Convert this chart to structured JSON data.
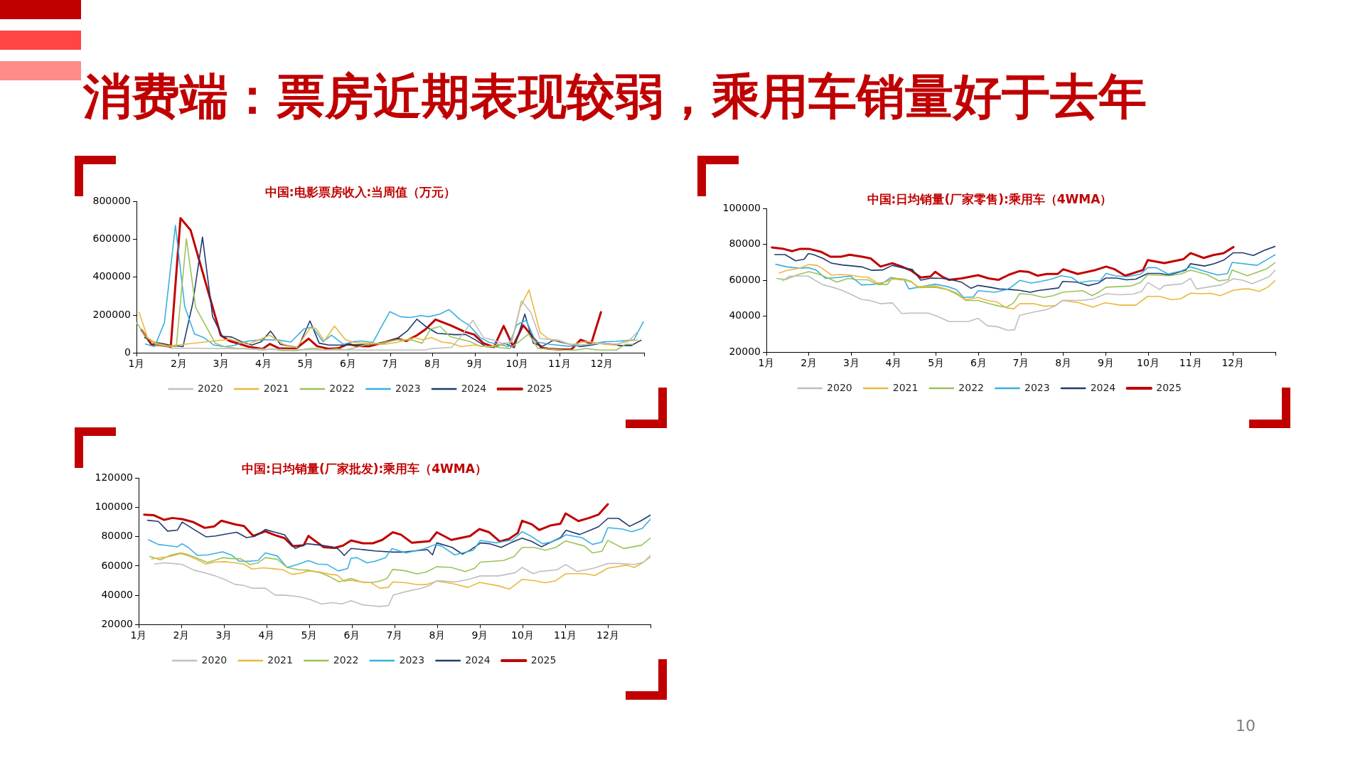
{
  "chart_data": [
    {
      "type": "other",
      "title": "消费端：票房近期表现较弱，乘用车销量好于去年",
      "annotations": [
        "10"
      ]
    },
    {
      "type": "line",
      "title": "中国:电影票房收入:当周值（万元）",
      "xlim": [
        1,
        13
      ],
      "xticks": [
        {
          "value": 1,
          "label": "1月"
        },
        {
          "value": 2,
          "label": "2月"
        },
        {
          "value": 3,
          "label": "3月"
        },
        {
          "value": 4,
          "label": "4月"
        },
        {
          "value": 5,
          "label": "5月"
        },
        {
          "value": 6,
          "label": "6月"
        },
        {
          "value": 7,
          "label": "7月"
        },
        {
          "value": 8,
          "label": "8月"
        },
        {
          "value": 9,
          "label": "9月"
        },
        {
          "value": 10,
          "label": "10月"
        },
        {
          "value": 11,
          "label": "11月"
        },
        {
          "value": 12,
          "label": "12月"
        },
        {
          "value": 13,
          "label": null
        }
      ],
      "ylim": [
        0,
        800000
      ],
      "yticks": [
        0,
        200000,
        400000,
        600000,
        800000
      ],
      "legend": "bottom",
      "series": [
        {
          "name": "2020",
          "color": "#bfbfbf",
          "x": [
            1.81,
            2.52,
            3.64,
            4.76,
            5.89,
            6.78,
            7.19,
            7.8,
            8.0,
            8.45,
            8.67,
            8.95,
            9.2,
            9.45,
            9.71,
            9.87,
            10.1,
            10.32,
            10.54,
            10.77,
            10.99,
            11.25,
            11.5,
            11.75,
            12.06,
            12.34,
            12.62,
            12.85
          ],
          "values": [
            24000,
            24000,
            21000,
            17000,
            15000,
            15000,
            15000,
            15000,
            23000,
            29000,
            87000,
            172000,
            81000,
            67000,
            45000,
            59000,
            275000,
            215000,
            75000,
            72000,
            67000,
            45000,
            42000,
            47000,
            51000,
            47000,
            59000,
            112000
          ]
        },
        {
          "name": "2021",
          "color": "#ebb83f",
          "x": [
            1.06,
            1.26,
            1.46,
            1.74,
            1.96,
            3.2,
            3.64,
            4.15,
            4.48,
            4.79,
            5.1,
            5.24,
            5.44,
            5.68,
            5.94,
            6.17,
            6.45,
            6.85,
            7.16,
            7.58,
            7.77,
            7.97,
            8.22,
            8.45,
            8.67,
            8.98,
            9.31,
            9.65,
            9.87,
            10.07,
            10.28,
            10.54,
            10.77,
            10.99,
            11.28,
            11.58,
            11.81,
            12.06,
            12.34,
            12.56,
            12.85
          ],
          "values": [
            215000,
            81000,
            51000,
            36000,
            41000,
            72000,
            45000,
            93000,
            45000,
            27000,
            130000,
            130000,
            63000,
            142000,
            69000,
            53000,
            51000,
            45000,
            55000,
            81000,
            69000,
            81000,
            57000,
            51000,
            33000,
            41000,
            33000,
            45000,
            59000,
            239000,
            333000,
            108000,
            69000,
            63000,
            42000,
            59000,
            55000,
            45000,
            41000,
            63000,
            67000
          ]
        },
        {
          "name": "2022",
          "color": "#9bc35a",
          "x": [
            1.01,
            1.24,
            1.46,
            1.71,
            1.94,
            2.18,
            2.4,
            2.64,
            2.86,
            3.08,
            3.36,
            3.64,
            3.98,
            4.2,
            4.48,
            4.76,
            5.04,
            5.21,
            5.44,
            5.72,
            5.94,
            6.17,
            6.45,
            6.78,
            7.16,
            7.49,
            7.75,
            7.96,
            8.18,
            8.42,
            8.64,
            8.87,
            9.12,
            9.43,
            9.62,
            9.82,
            10.04,
            10.27,
            10.49,
            10.77,
            11.11,
            11.39,
            11.64,
            11.89,
            12.34,
            12.56,
            12.73
          ],
          "values": [
            157000,
            81000,
            45000,
            36000,
            33000,
            603000,
            239000,
            142000,
            51000,
            33000,
            24000,
            23000,
            15000,
            21000,
            11000,
            11000,
            21000,
            24000,
            15000,
            21000,
            15000,
            27000,
            45000,
            51000,
            69000,
            69000,
            51000,
            127000,
            140000,
            85000,
            73000,
            61000,
            35000,
            33000,
            27000,
            23000,
            59000,
            100000,
            23000,
            21000,
            15000,
            15000,
            23000,
            15000,
            15000,
            45000,
            45000
          ]
        },
        {
          "name": "2023",
          "color": "#39b0e0",
          "x": [
            1.21,
            1.43,
            1.66,
            1.92,
            2.14,
            2.37,
            2.59,
            2.83,
            3.08,
            3.31,
            3.64,
            3.98,
            4.32,
            4.65,
            4.96,
            5.16,
            5.41,
            5.61,
            5.89,
            6.11,
            6.33,
            6.59,
            6.77,
            6.99,
            7.24,
            7.49,
            7.72,
            7.91,
            8.17,
            8.39,
            8.64,
            8.87,
            9.12,
            9.34,
            9.57,
            9.79,
            9.99,
            10.21,
            10.44,
            10.77,
            11.22,
            11.5,
            11.75,
            12.06,
            12.34,
            12.76,
            12.98
          ],
          "values": [
            47000,
            33000,
            160000,
            674000,
            245000,
            100000,
            81000,
            41000,
            33000,
            39000,
            63000,
            69000,
            69000,
            57000,
            127000,
            136000,
            59000,
            93000,
            45000,
            59000,
            63000,
            55000,
            130000,
            218000,
            191000,
            187000,
            197000,
            191000,
            205000,
            229000,
            178000,
            144000,
            81000,
            55000,
            45000,
            33000,
            148000,
            172000,
            59000,
            45000,
            35000,
            39000,
            47000,
            59000,
            61000,
            69000,
            164000
          ]
        },
        {
          "name": "2024",
          "color": "#1f3c6e",
          "x": [
            1.19,
            1.4,
            1.63,
            1.82,
            2.1,
            2.33,
            2.56,
            2.8,
            3.03,
            3.25,
            3.48,
            3.73,
            3.95,
            4.17,
            4.4,
            4.65,
            4.82,
            5.1,
            5.32,
            5.55,
            6.0,
            6.51,
            6.85,
            7.16,
            7.41,
            7.63,
            7.86,
            8.11,
            8.53,
            8.78,
            9.01,
            9.26,
            9.45,
            9.7,
            9.93,
            10.18,
            10.38,
            10.6,
            10.86,
            11.05,
            11.5,
            11.78,
            12.03,
            12.4,
            12.7,
            12.93
          ],
          "values": [
            81000,
            57000,
            49000,
            39000,
            33000,
            263000,
            612000,
            191000,
            87000,
            84000,
            59000,
            41000,
            59000,
            115000,
            45000,
            35000,
            27000,
            169000,
            51000,
            41000,
            41000,
            45000,
            55000,
            75000,
            118000,
            178000,
            136000,
            103000,
            96000,
            97000,
            69000,
            33000,
            30000,
            51000,
            27000,
            205000,
            51000,
            35000,
            67000,
            55000,
            33000,
            42000,
            53000,
            39000,
            39000,
            67000
          ]
        },
        {
          "name": "2025",
          "color": "#c00000",
          "x": [
            1.12,
            1.35,
            1.57,
            1.81,
            2.04,
            2.28,
            2.99,
            3.2,
            3.64,
            3.98,
            4.15,
            4.37,
            4.76,
            5.07,
            5.27,
            5.55,
            5.77,
            6.0,
            6.22,
            6.51,
            6.85,
            7.16,
            7.38,
            7.63,
            7.83,
            8.07,
            8.42,
            8.75,
            8.98,
            9.2,
            9.45,
            9.68,
            9.9,
            10.14,
            10.38,
            10.57,
            10.77,
            11.05,
            11.28,
            11.5,
            11.75,
            11.98
          ],
          "values": [
            121000,
            45000,
            41000,
            33000,
            712000,
            648000,
            93000,
            63000,
            33000,
            21000,
            47000,
            24000,
            21000,
            75000,
            35000,
            21000,
            24000,
            47000,
            36000,
            35000,
            55000,
            75000,
            63000,
            93000,
            124000,
            176000,
            146000,
            112000,
            97000,
            51000,
            30000,
            142000,
            35000,
            146000,
            81000,
            27000,
            21000,
            18000,
            18000,
            69000,
            49000,
            215000
          ]
        }
      ]
    },
    {
      "type": "line",
      "title": "中国:日均销量(厂家零售):乘用车（4WMA）",
      "xlim": [
        1,
        13
      ],
      "xticks": [
        {
          "value": 1,
          "label": "1月"
        },
        {
          "value": 2,
          "label": "2月"
        },
        {
          "value": 3,
          "label": "3月"
        },
        {
          "value": 4,
          "label": "4月"
        },
        {
          "value": 5,
          "label": "5月"
        },
        {
          "value": 6,
          "label": "6月"
        },
        {
          "value": 7,
          "label": "7月"
        },
        {
          "value": 8,
          "label": "8月"
        },
        {
          "value": 9,
          "label": "9月"
        },
        {
          "value": 10,
          "label": "10月"
        },
        {
          "value": 11,
          "label": "11月"
        },
        {
          "value": 12,
          "label": "12月"
        },
        {
          "value": 13,
          "label": null
        }
      ],
      "ylim": [
        20000,
        100000
      ],
      "yticks": [
        20000,
        40000,
        60000,
        80000,
        100000
      ],
      "legend": "bottom",
      "series": [
        {
          "name": "2020",
          "color": "#bfbfbf",
          "x": [
            1.38,
            1.55,
            1.99,
            2.17,
            2.34,
            2.56,
            2.76,
            2.98,
            3.24,
            3.43,
            3.69,
            3.97,
            4.19,
            4.42,
            4.81,
            5.01,
            5.31,
            5.76,
            5.99,
            6.21,
            6.44,
            6.69,
            6.85,
            6.97,
            7.25,
            7.59,
            7.81,
            7.98,
            8.42,
            8.7,
            9.01,
            9.32,
            9.65,
            9.85,
            9.99,
            10.27,
            10.38,
            10.8,
            11.0,
            11.14,
            11.47,
            11.73,
            12.01,
            12.23,
            12.45,
            12.85,
            13.0
          ],
          "values": [
            59800,
            62400,
            62400,
            59700,
            57500,
            56200,
            54700,
            52400,
            49400,
            48800,
            47000,
            47500,
            41500,
            41800,
            41800,
            40200,
            37000,
            37000,
            38900,
            34700,
            34200,
            32200,
            32500,
            40500,
            42100,
            43700,
            45700,
            48900,
            48800,
            49600,
            52600,
            52000,
            52400,
            53900,
            58800,
            54900,
            57100,
            58100,
            61100,
            55200,
            56500,
            57500,
            60900,
            60100,
            58100,
            62000,
            65800
          ]
        },
        {
          "name": "2021",
          "color": "#ebb83f",
          "x": [
            1.3,
            1.49,
            1.78,
            2.0,
            2.2,
            2.37,
            2.53,
            2.73,
            2.96,
            3.21,
            3.4,
            3.63,
            3.8,
            3.97,
            4.25,
            4.42,
            4.58,
            4.98,
            5.29,
            5.48,
            5.71,
            5.99,
            6.21,
            6.44,
            6.66,
            6.83,
            6.97,
            7.31,
            7.56,
            7.81,
            7.98,
            8.37,
            8.7,
            8.98,
            9.35,
            9.71,
            9.99,
            10.27,
            10.55,
            10.77,
            11.0,
            11.28,
            11.47,
            11.7,
            12.01,
            12.23,
            12.4,
            12.62,
            12.82,
            13.0
          ],
          "values": [
            64100,
            65600,
            66800,
            68800,
            68400,
            65800,
            62900,
            63300,
            63000,
            62000,
            61700,
            58500,
            59000,
            60700,
            60100,
            59000,
            56500,
            56900,
            54900,
            53000,
            49200,
            50500,
            48800,
            47900,
            44700,
            44100,
            47000,
            47000,
            45600,
            46000,
            48800,
            47500,
            45100,
            47500,
            46200,
            46200,
            51100,
            51100,
            49200,
            49800,
            52900,
            52600,
            52800,
            51500,
            54500,
            55200,
            55200,
            53900,
            56200,
            60000
          ]
        },
        {
          "name": "2022",
          "color": "#9bc35a",
          "x": [
            1.25,
            1.44,
            1.75,
            2.0,
            2.22,
            2.39,
            2.66,
            2.93,
            3.12,
            3.4,
            3.63,
            3.85,
            3.97,
            4.25,
            4.42,
            4.58,
            4.98,
            5.26,
            5.48,
            5.71,
            5.99,
            6.27,
            6.49,
            6.66,
            6.83,
            6.97,
            7.25,
            7.53,
            7.75,
            7.98,
            8.45,
            8.68,
            8.87,
            9.01,
            9.6,
            9.82,
            9.99,
            10.5,
            10.77,
            11.0,
            11.39,
            11.67,
            11.89,
            11.98,
            12.34,
            12.79,
            13.0
          ],
          "values": [
            61100,
            60400,
            63200,
            64900,
            63600,
            62000,
            59000,
            61100,
            60400,
            60300,
            57700,
            57700,
            61300,
            60700,
            59400,
            56000,
            56200,
            54900,
            52400,
            48800,
            48800,
            46900,
            45700,
            45000,
            47500,
            52600,
            52100,
            50500,
            51400,
            53400,
            54300,
            51500,
            53900,
            56200,
            56900,
            58800,
            63200,
            62600,
            63600,
            65800,
            63200,
            59700,
            60400,
            65800,
            62600,
            66400,
            70000
          ]
        },
        {
          "name": "2023",
          "color": "#39b0e0",
          "x": [
            1.22,
            1.49,
            1.78,
            1.99,
            2.17,
            2.39,
            2.67,
            2.98,
            3.24,
            3.46,
            3.74,
            3.94,
            4.25,
            4.36,
            4.58,
            4.98,
            5.26,
            5.48,
            5.65,
            5.88,
            5.99,
            6.38,
            6.66,
            6.77,
            6.97,
            7.25,
            7.47,
            7.72,
            7.95,
            8.2,
            8.37,
            8.65,
            8.87,
            9.01,
            9.21,
            9.49,
            9.82,
            9.99,
            10.19,
            10.47,
            10.77,
            11.0,
            11.42,
            11.64,
            11.87,
            11.98,
            12.57,
            13.0
          ],
          "values": [
            69000,
            67500,
            66800,
            67100,
            65800,
            61100,
            61600,
            62400,
            57500,
            57700,
            58400,
            61600,
            60300,
            55200,
            56200,
            57900,
            56600,
            54900,
            50500,
            50800,
            54300,
            53400,
            54900,
            56200,
            60000,
            58500,
            59400,
            60700,
            62600,
            61600,
            58800,
            59700,
            59800,
            63900,
            62600,
            62000,
            63500,
            67100,
            67100,
            63600,
            65200,
            67500,
            64500,
            63000,
            63900,
            70000,
            68400,
            74400
          ]
        },
        {
          "name": "2024",
          "color": "#1f3c6e",
          "x": [
            1.2,
            1.44,
            1.69,
            1.89,
            1.99,
            2.11,
            2.34,
            2.53,
            2.79,
            3.01,
            3.26,
            3.49,
            3.74,
            3.97,
            4.25,
            4.44,
            4.64,
            4.89,
            5.15,
            5.37,
            5.6,
            5.82,
            5.99,
            6.27,
            6.49,
            6.75,
            6.97,
            7.22,
            7.39,
            7.89,
            7.98,
            8.31,
            8.59,
            8.82,
            9.0,
            9.26,
            9.49,
            9.71,
            9.99,
            10.27,
            10.5,
            10.89,
            11.0,
            11.33,
            11.56,
            11.78,
            12.01,
            12.23,
            12.48,
            12.73,
            13.0
          ],
          "values": [
            74400,
            74400,
            70900,
            71800,
            75000,
            74400,
            72200,
            69600,
            68600,
            68100,
            67500,
            65600,
            65800,
            68400,
            66800,
            66100,
            60100,
            61300,
            61100,
            60300,
            59000,
            55600,
            57200,
            56200,
            55200,
            54900,
            54500,
            53400,
            54300,
            55800,
            59400,
            59000,
            57100,
            58400,
            61300,
            61300,
            60300,
            60700,
            63900,
            63900,
            63000,
            65800,
            69300,
            68000,
            69300,
            71300,
            75400,
            75400,
            73900,
            76700,
            79000
          ]
        },
        {
          "name": "2025",
          "color": "#c00000",
          "x": [
            1.13,
            1.38,
            1.61,
            1.8,
            2.0,
            2.28,
            2.51,
            2.76,
            2.96,
            3.26,
            3.46,
            3.69,
            3.97,
            4.19,
            4.42,
            4.64,
            4.87,
            4.98,
            5.15,
            5.31,
            5.6,
            5.99,
            6.24,
            6.47,
            6.72,
            6.97,
            7.17,
            7.39,
            7.61,
            7.87,
            8.0,
            8.34,
            8.76,
            9.01,
            9.21,
            9.46,
            9.88,
            9.99,
            10.38,
            10.83,
            11.0,
            11.31,
            11.53,
            11.78,
            12.01
          ],
          "values": [
            78400,
            77700,
            76300,
            77600,
            77600,
            76000,
            73200,
            73200,
            74300,
            73200,
            72200,
            67700,
            69600,
            67700,
            65400,
            61600,
            62200,
            64800,
            62000,
            60300,
            61100,
            62900,
            61100,
            60300,
            63200,
            65200,
            64800,
            62600,
            63600,
            63600,
            66200,
            63600,
            65800,
            67700,
            66200,
            62600,
            65800,
            71300,
            69600,
            71800,
            75200,
            72500,
            74100,
            75200,
            78600
          ]
        }
      ]
    },
    {
      "type": "line",
      "title": "中国:日均销量(厂家批发):乘用车（4WMA）",
      "xlim": [
        1,
        13
      ],
      "xticks": [
        {
          "value": 1,
          "label": "1月"
        },
        {
          "value": 2,
          "label": "2月"
        },
        {
          "value": 3,
          "label": "3月"
        },
        {
          "value": 4,
          "label": "4月"
        },
        {
          "value": 5,
          "label": "5月"
        },
        {
          "value": 6,
          "label": "6月"
        },
        {
          "value": 7,
          "label": "7月"
        },
        {
          "value": 8,
          "label": "8月"
        },
        {
          "value": 9,
          "label": "9月"
        },
        {
          "value": 10,
          "label": "10月"
        },
        {
          "value": 11,
          "label": "11月"
        },
        {
          "value": 12,
          "label": "12月"
        },
        {
          "value": 13,
          "label": null
        }
      ],
      "ylim": [
        20000,
        120000
      ],
      "yticks": [
        20000,
        40000,
        60000,
        80000,
        100000,
        120000
      ],
      "legend": "bottom",
      "series": [
        {
          "name": "2020",
          "color": "#bfbfbf",
          "x": [
            1.37,
            1.6,
            1.79,
            2.02,
            2.3,
            2.58,
            2.8,
            3.02,
            3.25,
            3.47,
            3.66,
            3.97,
            4.2,
            4.42,
            4.78,
            5.03,
            5.28,
            5.54,
            5.76,
            5.98,
            6.26,
            6.49,
            6.65,
            6.86,
            6.97,
            7.27,
            7.63,
            7.82,
            7.99,
            8.44,
            8.77,
            9.01,
            9.44,
            9.83,
            9.99,
            10.25,
            10.39,
            10.81,
            11.01,
            11.28,
            11.67,
            12.0,
            12.23,
            12.62,
            12.84,
            13.0
          ],
          "values": [
            61300,
            62100,
            61700,
            61000,
            57100,
            55100,
            53200,
            50700,
            47500,
            46700,
            44800,
            44800,
            40100,
            40100,
            38900,
            37000,
            34100,
            34900,
            34100,
            36200,
            33400,
            32700,
            32300,
            33000,
            40100,
            42500,
            44800,
            46700,
            49900,
            49100,
            51100,
            53200,
            53200,
            55400,
            59000,
            54700,
            56200,
            57400,
            61000,
            56200,
            58500,
            61700,
            61700,
            61000,
            62600,
            67300
          ]
        },
        {
          "name": "2021",
          "color": "#ebb83f",
          "x": [
            1.3,
            1.51,
            1.74,
            1.99,
            2.18,
            2.38,
            2.58,
            2.77,
            3.02,
            3.25,
            3.47,
            3.66,
            3.92,
            4.14,
            4.39,
            4.59,
            4.81,
            4.98,
            5.26,
            5.48,
            5.65,
            5.82,
            5.98,
            6.21,
            6.43,
            6.65,
            6.85,
            6.96,
            7.27,
            7.54,
            7.77,
            7.99,
            8.35,
            8.72,
            8.99,
            9.44,
            9.69,
            9.99,
            10.27,
            10.53,
            10.78,
            11.01,
            11.45,
            11.7,
            12.0,
            12.45,
            12.62,
            12.81,
            13.0
          ],
          "values": [
            64800,
            65600,
            66500,
            68400,
            66800,
            64200,
            61300,
            62600,
            62900,
            62100,
            61300,
            57900,
            58700,
            58200,
            57400,
            54300,
            55100,
            56600,
            55800,
            54300,
            53800,
            49600,
            50300,
            49100,
            48800,
            44800,
            45300,
            49100,
            48500,
            47200,
            47500,
            49600,
            48000,
            45300,
            48800,
            46400,
            44100,
            50800,
            50000,
            48500,
            49900,
            54700,
            54700,
            53500,
            58500,
            60600,
            59000,
            62100,
            66100
          ]
        },
        {
          "name": "2022",
          "color": "#9bc35a",
          "x": [
            1.26,
            1.51,
            1.74,
            1.99,
            2.13,
            2.3,
            2.62,
            2.97,
            3.19,
            3.39,
            3.61,
            3.8,
            3.97,
            4.25,
            4.48,
            4.76,
            4.98,
            5.26,
            5.48,
            5.7,
            5.98,
            6.26,
            6.49,
            6.65,
            6.82,
            6.96,
            7.27,
            7.52,
            7.74,
            7.99,
            8.33,
            8.66,
            8.88,
            9.01,
            9.55,
            9.8,
            9.99,
            10.27,
            10.53,
            10.78,
            11.01,
            11.45,
            11.64,
            11.86,
            12.0,
            12.37,
            12.79,
            13.0
          ],
          "values": [
            66500,
            64200,
            67300,
            68900,
            67900,
            66100,
            62400,
            65700,
            65000,
            65000,
            60900,
            62100,
            65700,
            64500,
            59000,
            57400,
            57100,
            55400,
            52700,
            49100,
            51400,
            48800,
            48800,
            49600,
            51400,
            57700,
            56600,
            54600,
            55800,
            59500,
            59000,
            56200,
            58500,
            62600,
            63700,
            66400,
            72700,
            72700,
            70800,
            72700,
            77100,
            73600,
            68900,
            70000,
            77500,
            71900,
            74200,
            79100
          ]
        },
        {
          "name": "2023",
          "color": "#39b0e0",
          "x": [
            1.23,
            1.46,
            1.68,
            1.91,
            2.02,
            2.16,
            2.38,
            2.63,
            2.97,
            3.19,
            3.36,
            3.58,
            3.8,
            3.97,
            4.25,
            4.48,
            4.73,
            4.98,
            5.2,
            5.42,
            5.68,
            5.9,
            5.98,
            6.12,
            6.35,
            6.54,
            6.79,
            6.94,
            7.27,
            7.68,
            7.96,
            8.1,
            8.41,
            8.85,
            9.01,
            9.38,
            9.77,
            9.99,
            10.16,
            10.47,
            10.67,
            10.89,
            11.01,
            11.39,
            11.64,
            11.86,
            12.0,
            12.34,
            12.56,
            12.81,
            13.0
          ],
          "values": [
            77900,
            74700,
            73900,
            73100,
            75200,
            72700,
            67200,
            67600,
            69700,
            67200,
            63200,
            63200,
            63700,
            68900,
            66800,
            59000,
            61000,
            63700,
            61300,
            61000,
            56600,
            58200,
            65300,
            65700,
            62100,
            63200,
            65700,
            71900,
            68900,
            71600,
            74700,
            73600,
            67600,
            70800,
            77400,
            75800,
            77800,
            83400,
            81000,
            75200,
            76300,
            78900,
            81300,
            79400,
            74700,
            76300,
            86200,
            85200,
            83400,
            85700,
            92000
          ]
        },
        {
          "name": "2024",
          "color": "#1f3c6e",
          "x": [
            1.21,
            1.46,
            1.68,
            1.91,
            2.02,
            2.3,
            2.58,
            2.8,
            3.05,
            3.3,
            3.53,
            3.72,
            3.97,
            4.2,
            4.42,
            4.67,
            4.95,
            5.26,
            5.54,
            5.68,
            5.82,
            5.98,
            6.26,
            6.54,
            6.96,
            7.24,
            7.63,
            7.77,
            7.89,
            7.99,
            8.35,
            8.59,
            8.77,
            9.02,
            9.22,
            9.5,
            9.72,
            9.99,
            10.22,
            10.44,
            10.67,
            10.89,
            11.02,
            11.34,
            11.56,
            11.78,
            12.0,
            12.25,
            12.51,
            12.78,
            13.0
          ],
          "values": [
            91200,
            90400,
            83800,
            84500,
            90000,
            84900,
            79900,
            80500,
            81800,
            83000,
            79400,
            80200,
            84900,
            83000,
            81300,
            72000,
            75200,
            74200,
            73100,
            71600,
            67200,
            72000,
            71200,
            70300,
            69500,
            69500,
            70800,
            71100,
            67600,
            75800,
            72700,
            68100,
            70800,
            75800,
            75200,
            72700,
            75800,
            79000,
            76700,
            73100,
            76300,
            79400,
            84400,
            81500,
            84100,
            86800,
            92500,
            92500,
            87100,
            90900,
            94800
          ]
        },
        {
          "name": "2025",
          "color": "#c00000",
          "x": [
            1.13,
            1.35,
            1.6,
            1.79,
            2.02,
            2.27,
            2.55,
            2.77,
            2.94,
            3.25,
            3.47,
            3.69,
            3.97,
            4.2,
            4.42,
            4.61,
            4.87,
            4.98,
            5.2,
            5.34,
            5.59,
            5.79,
            5.98,
            6.26,
            6.49,
            6.71,
            6.96,
            7.15,
            7.41,
            7.82,
            7.99,
            8.33,
            8.77,
            8.99,
            9.22,
            9.47,
            9.69,
            9.89,
            9.99,
            10.22,
            10.39,
            10.67,
            10.89,
            11.01,
            11.31,
            11.56,
            11.78,
            12.0
          ],
          "values": [
            95100,
            94700,
            91500,
            92800,
            92000,
            90100,
            86000,
            87000,
            90900,
            88500,
            87300,
            80500,
            83700,
            81000,
            79000,
            73600,
            74200,
            80500,
            75800,
            72800,
            72300,
            73900,
            77400,
            75500,
            75500,
            77800,
            83000,
            81400,
            75800,
            76900,
            83000,
            77800,
            80500,
            85200,
            83000,
            76700,
            78600,
            82600,
            90900,
            88400,
            84600,
            87800,
            88900,
            95900,
            90700,
            92800,
            95100,
            102200
          ]
        }
      ]
    }
  ]
}
